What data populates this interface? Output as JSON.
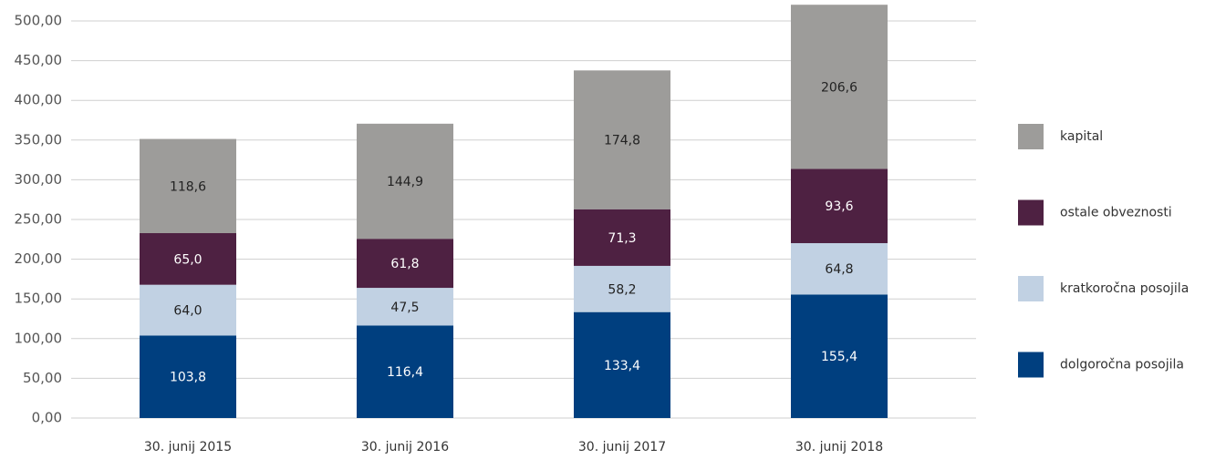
{
  "chart_data": {
    "type": "stacked_bar",
    "categories": [
      "30. junij 2015",
      "30. junij 2016",
      "30. junij 2017",
      "30. junij 2018"
    ],
    "series": [
      {
        "name": "dolgoročna posojila",
        "color": "#003f7f",
        "values": [
          103.8,
          116.4,
          133.4,
          155.4
        ],
        "value_labels": [
          "103,8",
          "116,4",
          "133,4",
          "155,4"
        ]
      },
      {
        "name": "kratkoročna posojila",
        "color": "#c1d1e3",
        "values": [
          64.0,
          47.5,
          58.2,
          64.8
        ],
        "value_labels": [
          "64,0",
          "47,5",
          "58,2",
          "64,8"
        ]
      },
      {
        "name": "ostale obveznosti",
        "color": "#4e2142",
        "values": [
          65.0,
          61.8,
          71.3,
          93.6
        ],
        "value_labels": [
          "65,0",
          "61,8",
          "71,3",
          "93,6"
        ]
      },
      {
        "name": "kapital",
        "color": "#9d9c9a",
        "values": [
          118.6,
          144.9,
          174.8,
          206.6
        ],
        "value_labels": [
          "118,6",
          "144,9",
          "174,8",
          "206,6"
        ]
      }
    ],
    "ylim": [
      0,
      500
    ],
    "yticks": [
      {
        "value": 0,
        "label": "0,00"
      },
      {
        "value": 50,
        "label": "50,00"
      },
      {
        "value": 100,
        "label": "100,00"
      },
      {
        "value": 150,
        "label": "150,00"
      },
      {
        "value": 200,
        "label": "200,00"
      },
      {
        "value": 250,
        "label": "250,00"
      },
      {
        "value": 300,
        "label": "300,00"
      },
      {
        "value": 350,
        "label": "350,00"
      },
      {
        "value": 400,
        "label": "400,00"
      },
      {
        "value": 450,
        "label": "450,00"
      },
      {
        "value": 500,
        "label": "500,00"
      }
    ],
    "grid": true,
    "legend": "right"
  }
}
